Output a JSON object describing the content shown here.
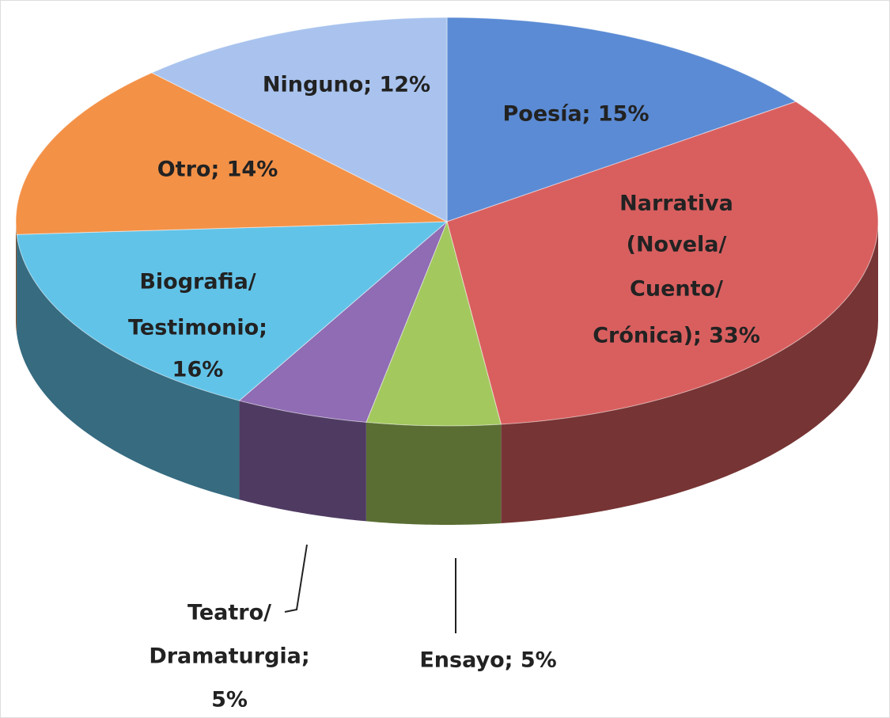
{
  "chart_data": {
    "type": "pie",
    "values": [
      15,
      33,
      5,
      5,
      16,
      14,
      12
    ],
    "value_labels": [
      [
        "Poesía; 15%"
      ],
      [
        "Narrativa",
        "(Novela/",
        "Cuento/",
        "Crónica); 33%"
      ],
      [
        "Ensayo; 5%"
      ],
      [
        "Teatro/",
        "Dramaturgia;",
        "5%"
      ],
      [
        "Biografia/",
        "Testimonio;",
        "16%"
      ],
      [
        "Otro; 14%"
      ],
      [
        "Ninguno; 12%"
      ]
    ],
    "colors": [
      "#5b8bd4",
      "#d95f5f",
      "#a3c85e",
      "#8f6cb3",
      "#62c3e8",
      "#f39147",
      "#a9c3ee"
    ]
  }
}
